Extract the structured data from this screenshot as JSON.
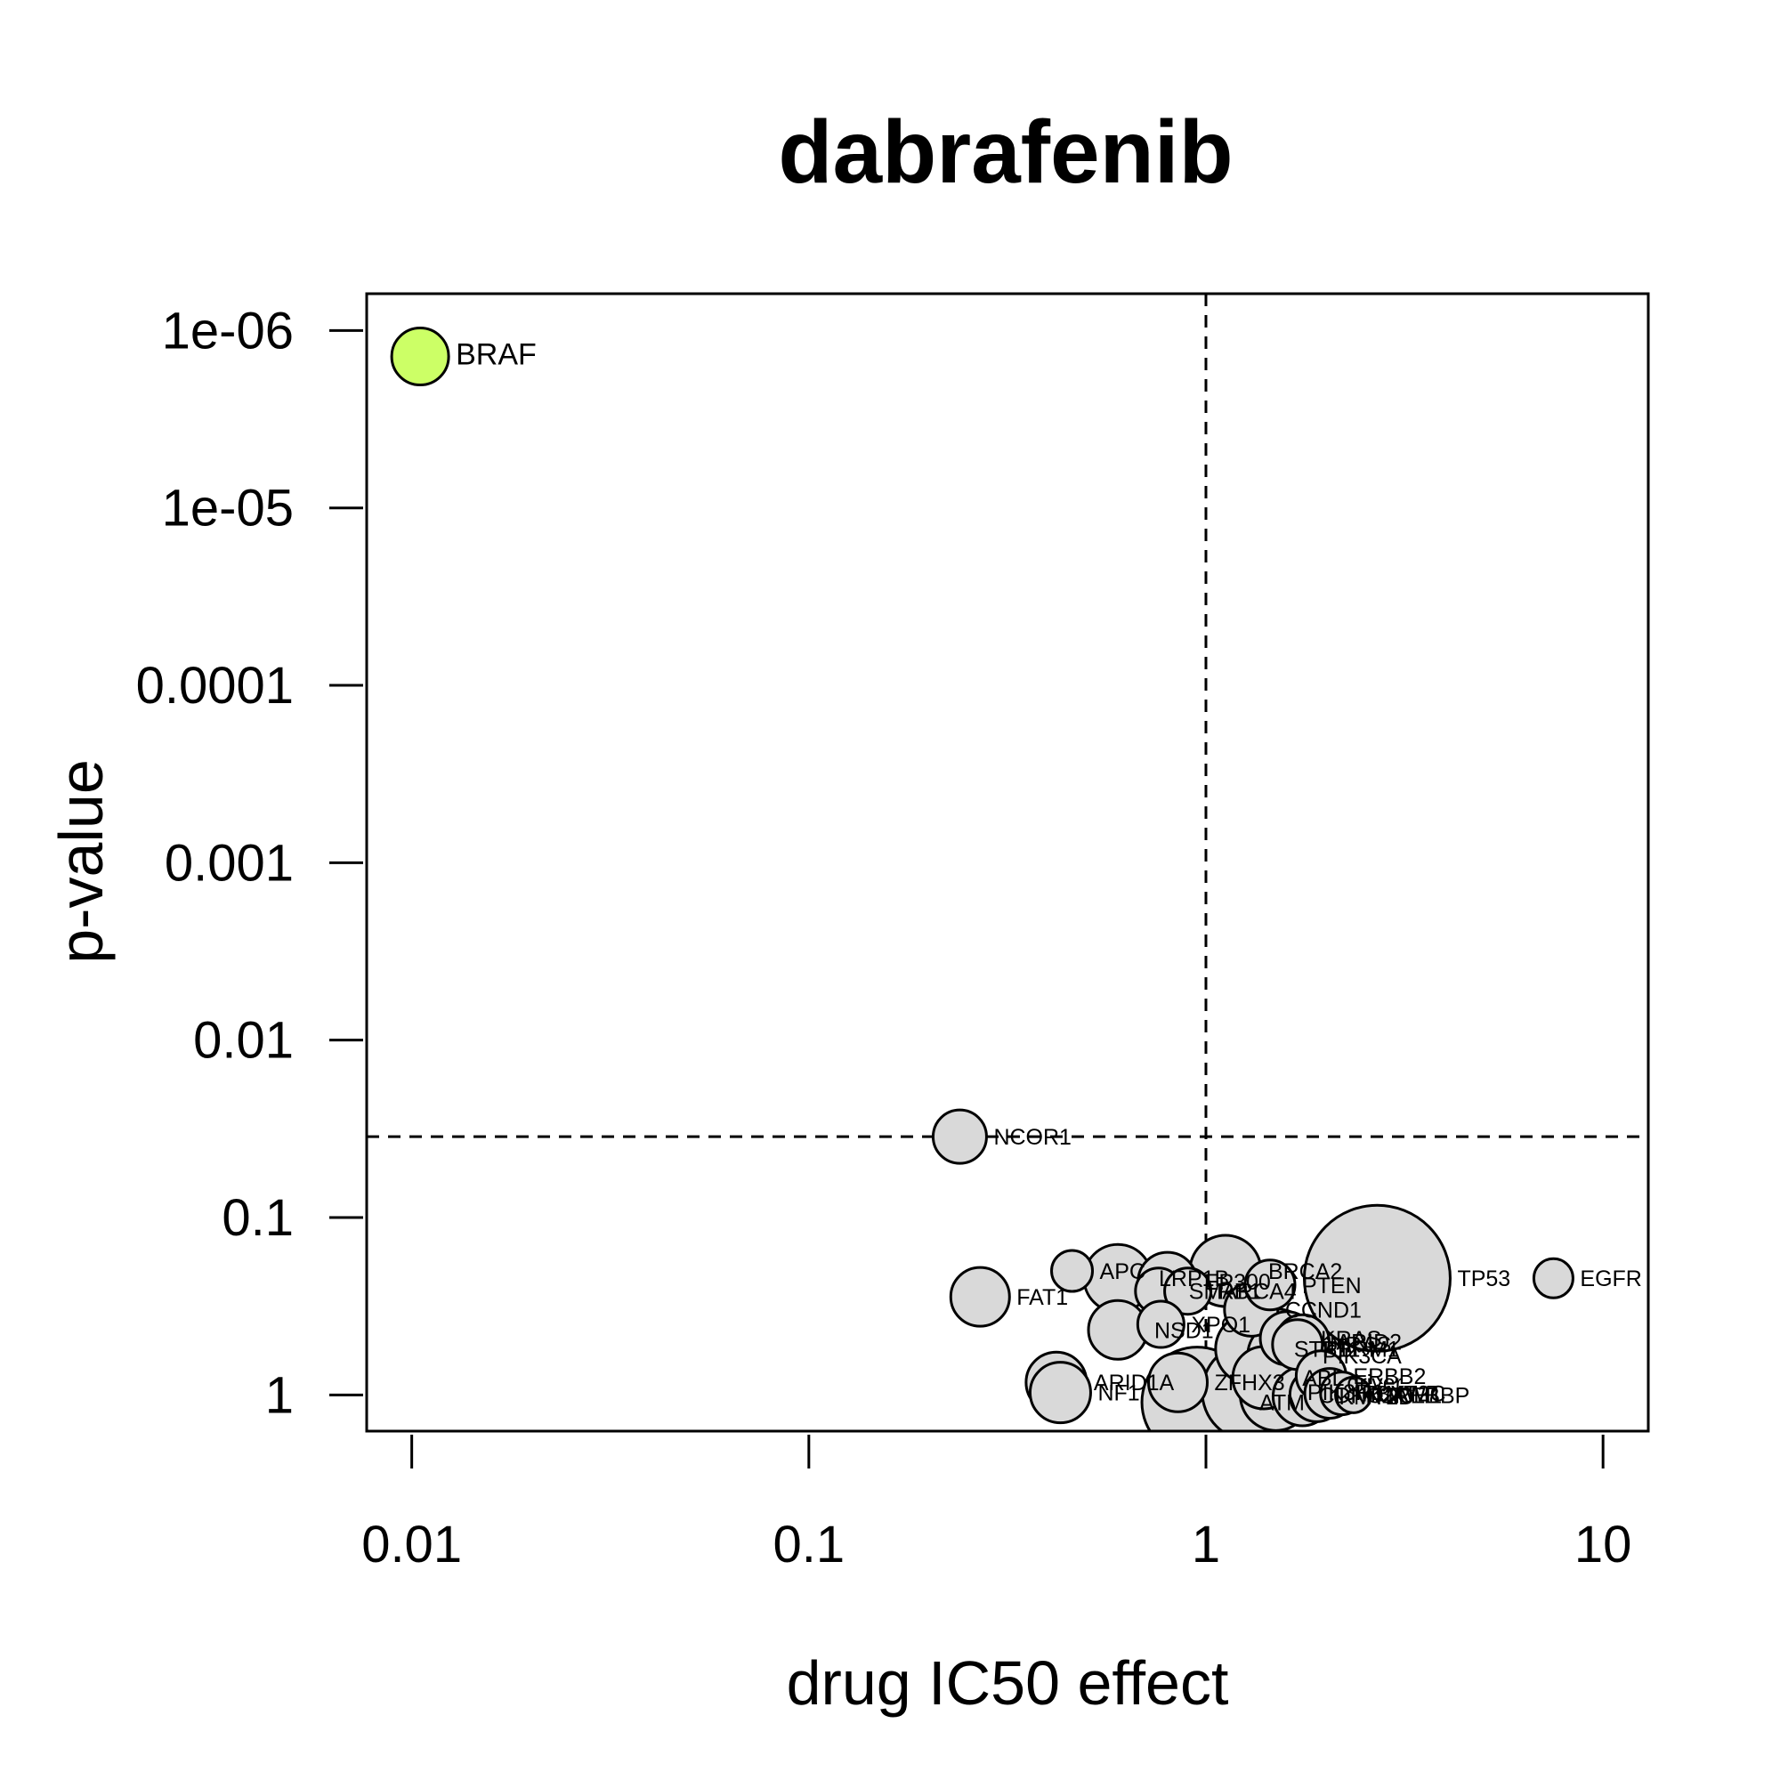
{
  "chart_data": {
    "type": "scatter",
    "title": "dabrafenib",
    "xlabel": "drug IC50 effect",
    "ylabel": "p-value",
    "x_scale": "log",
    "y_scale": "log-reversed",
    "xlim": [
      0.0077,
      13
    ],
    "ylim": [
      1.6,
      6.2e-07
    ],
    "x_ticks": [
      0.01,
      0.1,
      1,
      10
    ],
    "x_tick_labels": [
      "0.01",
      "0.1",
      "1",
      "10"
    ],
    "y_ticks": [
      1e-06,
      1e-05,
      0.0001,
      0.001,
      0.01,
      0.1,
      1
    ],
    "y_tick_labels": [
      "1e-06",
      "1e-05",
      "0.0001",
      "0.001",
      "0.01",
      "0.1",
      "1"
    ],
    "reference_lines": {
      "x": 1,
      "y": 0.035
    },
    "colors": {
      "highlight": "#ccff66",
      "default": "#d9d9d9",
      "stroke": "#000000"
    },
    "points": [
      {
        "label": "BRAF",
        "x": 0.0105,
        "y": 1.4e-06,
        "r": 32,
        "color": "#ccff66"
      },
      {
        "label": "NCOR1",
        "x": 0.24,
        "y": 0.035,
        "r": 30,
        "color": "#d9d9d9"
      },
      {
        "label": "TP53",
        "x": 2.7,
        "y": 0.22,
        "r": 82,
        "color": "#d9d9d9"
      },
      {
        "label": "EGFR",
        "x": 7.5,
        "y": 0.22,
        "r": 22,
        "color": "#d9d9d9"
      },
      {
        "label": "FAT1",
        "x": 0.27,
        "y": 0.28,
        "r": 33,
        "color": "#d9d9d9"
      },
      {
        "label": "APC",
        "x": 0.46,
        "y": 0.2,
        "r": 23,
        "color": "#d9d9d9"
      },
      {
        "label": "LRP1B",
        "x": 0.6,
        "y": 0.22,
        "r": 38,
        "color": "#d9d9d9"
      },
      {
        "label": "BRCA2",
        "x": 1.12,
        "y": 0.2,
        "r": 40,
        "color": "#d9d9d9"
      },
      {
        "label": "EP300",
        "x": 0.8,
        "y": 0.23,
        "r": 33,
        "color": "#d9d9d9"
      },
      {
        "label": "SMARCA4",
        "x": 0.76,
        "y": 0.26,
        "r": 26,
        "color": "#d9d9d9"
      },
      {
        "label": "RB1",
        "x": 0.9,
        "y": 0.26,
        "r": 26,
        "color": "#d9d9d9"
      },
      {
        "label": "PTEN",
        "x": 1.45,
        "y": 0.24,
        "r": 28,
        "color": "#d9d9d9"
      },
      {
        "label": "CCND1",
        "x": 1.3,
        "y": 0.33,
        "r": 30,
        "color": "#d9d9d9"
      },
      {
        "label": "NSD1",
        "x": 0.6,
        "y": 0.43,
        "r": 33,
        "color": "#d9d9d9"
      },
      {
        "label": "XPO1",
        "x": 0.77,
        "y": 0.4,
        "r": 26,
        "color": "#d9d9d9"
      },
      {
        "label": "STK11",
        "x": 1.3,
        "y": 0.55,
        "r": 40,
        "color": "#d9d9d9"
      },
      {
        "label": "PBRM1",
        "x": 1.5,
        "y": 0.55,
        "r": 45,
        "color": "#d9d9d9"
      },
      {
        "label": "KRAS",
        "x": 1.6,
        "y": 0.48,
        "r": 30,
        "color": "#d9d9d9"
      },
      {
        "label": "NRAS",
        "x": 1.7,
        "y": 0.52,
        "r": 28,
        "color": "#d9d9d9"
      },
      {
        "label": "PIK3CA",
        "x": 1.55,
        "y": 0.6,
        "r": 38,
        "color": "#d9d9d9"
      },
      {
        "label": "ARID2",
        "x": 1.75,
        "y": 0.5,
        "r": 30,
        "color": "#d9d9d9"
      },
      {
        "label": "ARID1A",
        "x": 0.42,
        "y": 0.85,
        "r": 34,
        "color": "#d9d9d9"
      },
      {
        "label": "NF1",
        "x": 0.43,
        "y": 0.97,
        "r": 34,
        "color": "#d9d9d9"
      },
      {
        "label": "ZFHX3",
        "x": 0.85,
        "y": 0.85,
        "r": 33,
        "color": "#d9d9d9"
      },
      {
        "label": "ABL",
        "x": 1.4,
        "y": 0.8,
        "r": 35,
        "color": "#d9d9d9"
      },
      {
        "label": "driver",
        "x": 1.75,
        "y": 0.85,
        "r": 42,
        "color": "#d9d9d9"
      },
      {
        "label": "ERBB2",
        "x": 1.95,
        "y": 0.78,
        "r": 28,
        "color": "#d9d9d9"
      },
      {
        "label": "CDKN2A",
        "x": 1.5,
        "y": 1.0,
        "r": 40,
        "color": "#d9d9d9"
      },
      {
        "label": "KMT2D",
        "x": 1.75,
        "y": 1.02,
        "r": 33,
        "color": "#d9d9d9"
      },
      {
        "label": "NOTCH1",
        "x": 1.9,
        "y": 1.0,
        "r": 30,
        "color": "#d9d9d9"
      },
      {
        "label": "FBXW7",
        "x": 2.05,
        "y": 0.98,
        "r": 28,
        "color": "#d9d9d9"
      },
      {
        "label": "KMT2C",
        "x": 2.2,
        "y": 0.98,
        "r": 24,
        "color": "#d9d9d9"
      },
      {
        "label": "CREBBP",
        "x": 2.35,
        "y": 1.0,
        "r": 20,
        "color": "#d9d9d9"
      },
      {
        "label": "ATM",
        "x": 0.95,
        "y": 1.1,
        "r": 62,
        "color": "#d9d9d9"
      },
      {
        "label": "PIK3R1",
        "x": 1.3,
        "y": 0.96,
        "r": 55,
        "color": "#d9d9d9"
      }
    ]
  }
}
